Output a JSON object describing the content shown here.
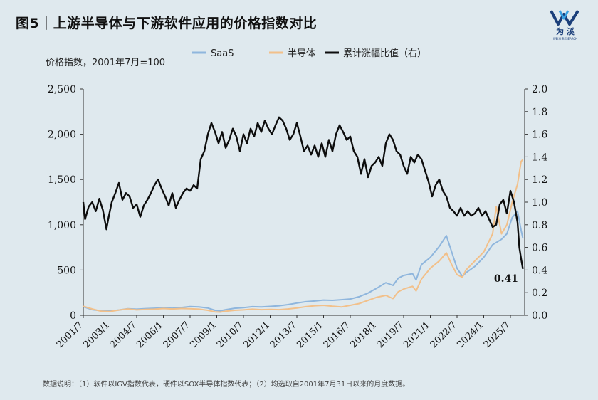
{
  "title": "图5｜上游半导体与下游软件应用的价格指数对比",
  "logo": {
    "text": "为 溪",
    "sub": "WEIXI RESEARCH",
    "accent": "#1b3f7a",
    "accent2": "#3aa0e0"
  },
  "footnote": "数据说明：（1）软件以IGV指数代表，硬件以SOX半导体指数代表；（2）均选取自2001年7月31日以来的月度数据。",
  "chart_data": {
    "type": "line",
    "unit_note": "价格指数，2001年7月=100",
    "legend": [
      "SaaS",
      "半导体",
      "累计涨幅比值（右）"
    ],
    "legend_position": "top-center",
    "x_tick_labels": [
      "2001/7",
      "2003/1",
      "2004/7",
      "2006/1",
      "2007/7",
      "2009/1",
      "2010/7",
      "2012/1",
      "2013/7",
      "2015/1",
      "2016/7",
      "2018/1",
      "2019/7",
      "2021/1",
      "2022/7",
      "2024/1",
      "2025/7"
    ],
    "x_tick_dates": [
      2001.5,
      2003.0,
      2004.5,
      2006.0,
      2007.5,
      2009.0,
      2010.5,
      2012.0,
      2013.5,
      2015.0,
      2016.5,
      2018.0,
      2019.5,
      2021.0,
      2022.5,
      2024.0,
      2025.5
    ],
    "x_range": [
      2001.5,
      2026.3
    ],
    "y_left": {
      "range": [
        0,
        2500
      ],
      "tick_labels": [
        "0",
        "500",
        "1,000",
        "1,500",
        "2,000",
        "2,500"
      ],
      "tick_values": [
        0,
        500,
        1000,
        1500,
        2000,
        2500
      ]
    },
    "y_right": {
      "range": [
        0,
        2.0
      ],
      "tick_labels": [
        "0.0",
        "0.2",
        "0.4",
        "0.6",
        "0.8",
        "1.0",
        "1.2",
        "1.4",
        "1.6",
        "1.8",
        "2.0"
      ],
      "tick_values": [
        0,
        0.2,
        0.4,
        0.6,
        0.8,
        1.0,
        1.2,
        1.4,
        1.6,
        1.8,
        2.0
      ]
    },
    "grid": false,
    "annotation": {
      "text": "0.41",
      "x": 2026.1,
      "y_right": 0.41
    },
    "series": [
      {
        "name": "SaaS",
        "axis": "left",
        "color": "#8fb6dd",
        "x": [
          2001.5,
          2002.0,
          2002.5,
          2003.0,
          2003.5,
          2004.0,
          2004.5,
          2005.0,
          2005.5,
          2006.0,
          2006.5,
          2007.0,
          2007.5,
          2008.0,
          2008.5,
          2008.9,
          2009.2,
          2009.5,
          2010.0,
          2010.5,
          2011.0,
          2011.5,
          2012.0,
          2012.5,
          2013.0,
          2013.5,
          2014.0,
          2014.5,
          2015.0,
          2015.5,
          2016.0,
          2016.5,
          2017.0,
          2017.5,
          2018.0,
          2018.5,
          2018.9,
          2019.2,
          2019.5,
          2020.0,
          2020.2,
          2020.5,
          2021.0,
          2021.5,
          2021.9,
          2022.2,
          2022.5,
          2022.8,
          2023.0,
          2023.5,
          2024.0,
          2024.5,
          2025.0,
          2025.3,
          2025.6,
          2025.9,
          2026.1,
          2026.2
        ],
        "y": [
          95,
          62,
          50,
          48,
          58,
          72,
          68,
          74,
          78,
          82,
          78,
          86,
          96,
          92,
          80,
          55,
          50,
          62,
          78,
          85,
          95,
          92,
          98,
          105,
          118,
          135,
          150,
          158,
          168,
          165,
          172,
          180,
          205,
          245,
          300,
          360,
          330,
          410,
          440,
          460,
          390,
          560,
          640,
          760,
          880,
          700,
          520,
          430,
          470,
          540,
          640,
          780,
          840,
          900,
          1080,
          1150,
          940,
          850
        ]
      },
      {
        "name": "半导体",
        "axis": "left",
        "color": "#f2c08a",
        "x": [
          2001.5,
          2002.0,
          2002.5,
          2003.0,
          2003.5,
          2004.0,
          2004.5,
          2005.0,
          2005.5,
          2006.0,
          2006.5,
          2007.0,
          2007.5,
          2008.0,
          2008.5,
          2008.9,
          2009.2,
          2009.5,
          2010.0,
          2010.5,
          2011.0,
          2011.5,
          2012.0,
          2012.5,
          2013.0,
          2013.5,
          2014.0,
          2014.5,
          2015.0,
          2015.5,
          2016.0,
          2016.5,
          2017.0,
          2017.5,
          2018.0,
          2018.5,
          2018.9,
          2019.2,
          2019.5,
          2020.0,
          2020.2,
          2020.5,
          2021.0,
          2021.5,
          2021.9,
          2022.2,
          2022.5,
          2022.8,
          2023.0,
          2023.5,
          2024.0,
          2024.5,
          2024.7,
          2025.0,
          2025.3,
          2025.6,
          2025.9,
          2026.1,
          2026.2
        ],
        "y": [
          100,
          70,
          45,
          42,
          58,
          70,
          60,
          65,
          68,
          75,
          70,
          75,
          72,
          68,
          55,
          38,
          35,
          45,
          55,
          60,
          68,
          62,
          65,
          62,
          70,
          80,
          95,
          105,
          110,
          100,
          92,
          110,
          130,
          165,
          200,
          220,
          185,
          260,
          290,
          320,
          270,
          400,
          520,
          600,
          690,
          560,
          450,
          420,
          500,
          600,
          700,
          900,
          1200,
          900,
          1000,
          1250,
          1450,
          1700,
          1720
        ]
      },
      {
        "name": "累计涨幅比值（右）",
        "axis": "right",
        "color": "#0d0d0d",
        "x": [
          2001.5,
          2001.6,
          2001.8,
          2002.0,
          2002.2,
          2002.4,
          2002.6,
          2002.8,
          2002.9,
          2003.1,
          2003.3,
          2003.5,
          2003.7,
          2003.9,
          2004.1,
          2004.3,
          2004.5,
          2004.7,
          2004.9,
          2005.1,
          2005.3,
          2005.5,
          2005.7,
          2005.9,
          2006.1,
          2006.3,
          2006.5,
          2006.7,
          2006.9,
          2007.1,
          2007.3,
          2007.5,
          2007.7,
          2007.9,
          2008.1,
          2008.3,
          2008.5,
          2008.7,
          2008.9,
          2009.1,
          2009.3,
          2009.5,
          2009.7,
          2009.9,
          2010.1,
          2010.3,
          2010.5,
          2010.7,
          2010.9,
          2011.1,
          2011.3,
          2011.5,
          2011.7,
          2011.9,
          2012.1,
          2012.3,
          2012.5,
          2012.7,
          2012.9,
          2013.1,
          2013.3,
          2013.5,
          2013.7,
          2013.9,
          2014.1,
          2014.3,
          2014.5,
          2014.7,
          2014.9,
          2015.1,
          2015.3,
          2015.5,
          2015.7,
          2015.9,
          2016.1,
          2016.3,
          2016.5,
          2016.7,
          2016.9,
          2017.1,
          2017.3,
          2017.5,
          2017.7,
          2017.9,
          2018.1,
          2018.3,
          2018.5,
          2018.7,
          2018.9,
          2019.1,
          2019.3,
          2019.5,
          2019.7,
          2019.9,
          2020.1,
          2020.3,
          2020.5,
          2020.7,
          2020.9,
          2021.1,
          2021.3,
          2021.5,
          2021.7,
          2021.9,
          2022.1,
          2022.3,
          2022.5,
          2022.7,
          2022.9,
          2023.1,
          2023.3,
          2023.5,
          2023.7,
          2023.9,
          2024.1,
          2024.3,
          2024.5,
          2024.7,
          2024.9,
          2025.1,
          2025.3,
          2025.5,
          2025.7,
          2025.9,
          2026.0,
          2026.1,
          2026.2
        ],
        "y": [
          1.0,
          0.85,
          0.96,
          1.0,
          0.92,
          1.03,
          0.93,
          0.76,
          0.85,
          1.0,
          1.08,
          1.17,
          1.02,
          1.08,
          1.05,
          0.95,
          0.98,
          0.87,
          0.97,
          1.02,
          1.08,
          1.15,
          1.2,
          1.12,
          1.05,
          0.97,
          1.08,
          0.95,
          1.02,
          1.08,
          1.12,
          1.1,
          1.15,
          1.12,
          1.38,
          1.45,
          1.6,
          1.7,
          1.62,
          1.52,
          1.62,
          1.48,
          1.55,
          1.65,
          1.58,
          1.45,
          1.6,
          1.52,
          1.65,
          1.58,
          1.7,
          1.62,
          1.72,
          1.65,
          1.6,
          1.68,
          1.75,
          1.72,
          1.65,
          1.55,
          1.6,
          1.7,
          1.58,
          1.45,
          1.5,
          1.42,
          1.5,
          1.4,
          1.52,
          1.4,
          1.55,
          1.45,
          1.6,
          1.68,
          1.62,
          1.55,
          1.58,
          1.45,
          1.4,
          1.25,
          1.38,
          1.22,
          1.32,
          1.35,
          1.4,
          1.32,
          1.52,
          1.6,
          1.55,
          1.45,
          1.42,
          1.32,
          1.25,
          1.4,
          1.35,
          1.42,
          1.38,
          1.28,
          1.18,
          1.05,
          1.15,
          1.2,
          1.1,
          1.05,
          0.95,
          0.92,
          0.88,
          0.95,
          0.88,
          0.92,
          0.88,
          0.9,
          0.95,
          0.88,
          0.92,
          0.85,
          0.78,
          0.8,
          0.98,
          1.02,
          0.9,
          1.1,
          1.0,
          0.82,
          0.6,
          0.5,
          0.41
        ]
      }
    ]
  }
}
